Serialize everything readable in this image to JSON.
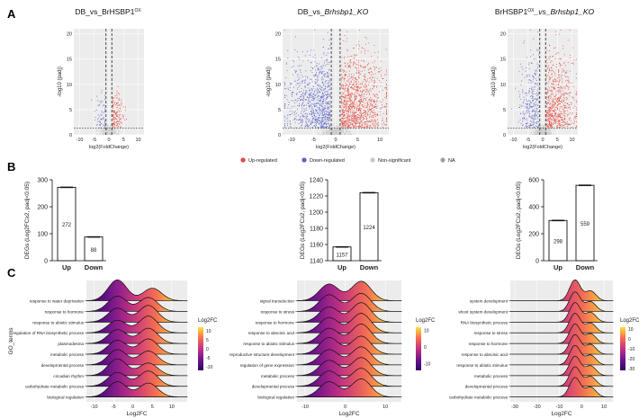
{
  "panel_labels": {
    "a": "A",
    "b": "B",
    "c": "C"
  },
  "chart_data": [
    {
      "type": "scatter",
      "id": "volcano-1",
      "title_main": "DB_vs_BrHSBP1",
      "title_sup": "OX",
      "title_tail": "",
      "xlabel": "log2(FoldChange)",
      "ylabel": "-log10 (padj)",
      "xlim": [
        -12,
        12
      ],
      "ylim": [
        0,
        21
      ],
      "xticks": [
        -10,
        -5,
        0,
        5,
        10
      ],
      "yticks": [
        0,
        5,
        10,
        15,
        20
      ],
      "fc_cutoffs": [
        -1,
        1
      ],
      "padj_line": 1.3,
      "points": {
        "down": 60,
        "up": 140,
        "ns": 280
      },
      "spread": {
        "down_x": 3.5,
        "up_x": 3.5,
        "y_max": 10
      }
    },
    {
      "type": "scatter",
      "id": "volcano-2",
      "title_main": "DB_vs_",
      "title_sup": "",
      "title_tail": "Brhsbp1_KO",
      "xlabel": "log2(FoldChange)",
      "ylabel": "-log10 (padj)",
      "xlim": [
        -12,
        12
      ],
      "ylim": [
        0,
        21
      ],
      "xticks": [
        -10,
        -5,
        0,
        5,
        10
      ],
      "yticks": [
        0,
        5,
        10,
        15,
        20
      ],
      "fc_cutoffs": [
        -1,
        1
      ],
      "padj_line": 1.3,
      "points": {
        "down": 900,
        "up": 1100,
        "ns": 500
      },
      "spread": {
        "down_x": 9,
        "up_x": 9,
        "y_max": 20
      }
    },
    {
      "type": "scatter",
      "id": "volcano-3",
      "title_main": "BrHSBP1",
      "title_sup": "OX",
      "title_tail": "_vs_Brhsbp1_KO",
      "xlabel": "log2(FoldChange)",
      "ylabel": "-log10 (padj)",
      "xlim": [
        -12,
        12
      ],
      "ylim": [
        0,
        21
      ],
      "xticks": [
        -10,
        -5,
        0,
        5,
        10
      ],
      "yticks": [
        0,
        5,
        10,
        15,
        20
      ],
      "fc_cutoffs": [
        -1,
        1
      ],
      "padj_line": 1.3,
      "points": {
        "down": 300,
        "up": 650,
        "ns": 450
      },
      "spread": {
        "down_x": 6,
        "up_x": 9,
        "y_max": 20
      }
    },
    {
      "type": "legend",
      "id": "volcano-legend",
      "items": [
        {
          "label": "Up-regulated",
          "color": "#e8463c"
        },
        {
          "label": "Down-regulated",
          "color": "#5a63c8"
        },
        {
          "label": "Non-significant",
          "color": "#c8c8c8"
        },
        {
          "label": "NA",
          "color": "#a0a0a0"
        }
      ]
    },
    {
      "type": "bar",
      "id": "bar-1",
      "categories": [
        "Up",
        "Down"
      ],
      "values": [
        272,
        88
      ],
      "ylabel": "DEGs (Log2FC≥2, padj<0.05)",
      "ylim": [
        0,
        300
      ],
      "yticks": [
        0,
        100,
        200,
        300
      ]
    },
    {
      "type": "bar",
      "id": "bar-2",
      "categories": [
        "Up",
        "Down"
      ],
      "values": [
        1157,
        1224
      ],
      "ylabel": "DEGs (Log2FC≥2, padj<0.05)",
      "ylim": [
        1140,
        1240
      ],
      "yticks": [
        1140,
        1160,
        1180,
        1200,
        1220,
        1240
      ]
    },
    {
      "type": "bar",
      "id": "bar-3",
      "categories": [
        "Up",
        "Down"
      ],
      "values": [
        298,
        559
      ],
      "ylabel": "DEGs (Log2FC≥2, padj<0.05)",
      "ylim": [
        0,
        600
      ],
      "yticks": [
        0,
        200,
        400,
        600
      ]
    },
    {
      "type": "ridgeline",
      "id": "ridge-1",
      "ylabel": "GO_terms",
      "xlabel": "Log2FC",
      "xlim": [
        -12,
        14
      ],
      "xticks": [
        -10,
        -5,
        0,
        5,
        10
      ],
      "legend_title": "Log2FC",
      "legend_ticks": [
        10,
        5,
        0,
        -5,
        -10
      ],
      "color_range": [
        -12,
        12
      ],
      "terms": [
        {
          "label": "response to water deprivation",
          "modes": [
            [
              -4,
              0.75
            ],
            [
              5,
              0.45
            ]
          ]
        },
        {
          "label": "response to hormone",
          "modes": [
            [
              -4,
              0.55
            ],
            [
              4,
              0.5
            ]
          ]
        },
        {
          "label": "response to abiotic stimulus",
          "modes": [
            [
              -4,
              0.5
            ],
            [
              4,
              0.6
            ]
          ]
        },
        {
          "label": "regulation of RNA biosynthetic process",
          "modes": [
            [
              -4,
              0.45
            ],
            [
              4,
              0.6
            ]
          ]
        },
        {
          "label": "plasmodesma",
          "modes": [
            [
              -4,
              0.5
            ],
            [
              4,
              0.55
            ]
          ]
        },
        {
          "label": "metabolic process",
          "modes": [
            [
              -4,
              0.5
            ],
            [
              4,
              0.55
            ]
          ]
        },
        {
          "label": "developmental process",
          "modes": [
            [
              -4,
              0.55
            ],
            [
              4,
              0.5
            ]
          ]
        },
        {
          "label": "circadian rhythm",
          "modes": [
            [
              -4,
              0.6
            ],
            [
              4,
              0.45
            ]
          ]
        },
        {
          "label": "carbohydrate metabolic process",
          "modes": [
            [
              -4,
              0.5
            ],
            [
              4,
              0.55
            ]
          ]
        },
        {
          "label": "biological regulation",
          "modes": [
            [
              -4,
              0.55
            ],
            [
              4,
              0.5
            ]
          ]
        }
      ]
    },
    {
      "type": "ridgeline",
      "id": "ridge-2",
      "ylabel": "",
      "xlabel": "Log2FC",
      "xlim": [
        -12,
        14
      ],
      "xticks": [
        -10,
        0,
        10
      ],
      "legend_title": "Log2FC",
      "legend_ticks": [
        10,
        0,
        -10
      ],
      "color_range": [
        -14,
        12
      ],
      "terms": [
        {
          "label": "signal transduction",
          "modes": [
            [
              -4,
              0.6
            ],
            [
              4,
              0.7
            ]
          ]
        },
        {
          "label": "response to stress",
          "modes": [
            [
              -4,
              0.6
            ],
            [
              4,
              0.65
            ]
          ]
        },
        {
          "label": "response to hormone",
          "modes": [
            [
              -4,
              0.55
            ],
            [
              4,
              0.7
            ]
          ]
        },
        {
          "label": "response to abscisic acid",
          "modes": [
            [
              -4,
              0.55
            ],
            [
              4,
              0.7
            ]
          ]
        },
        {
          "label": "response to abiotic stimulus",
          "modes": [
            [
              -4,
              0.55
            ],
            [
              4,
              0.7
            ]
          ]
        },
        {
          "label": "reproductive structure development",
          "modes": [
            [
              -4,
              0.6
            ],
            [
              4,
              0.65
            ]
          ]
        },
        {
          "label": "regulation of gene expression",
          "modes": [
            [
              -4,
              0.55
            ],
            [
              4,
              0.65
            ]
          ]
        },
        {
          "label": "metabolic process",
          "modes": [
            [
              -4,
              0.55
            ],
            [
              4,
              0.65
            ]
          ]
        },
        {
          "label": "developmental process",
          "modes": [
            [
              -4,
              0.55
            ],
            [
              4,
              0.65
            ]
          ]
        },
        {
          "label": "biological regulation",
          "modes": [
            [
              -4,
              0.55
            ],
            [
              4,
              0.65
            ]
          ]
        }
      ]
    },
    {
      "type": "ridgeline",
      "id": "ridge-3",
      "ylabel": "",
      "xlabel": "Log2FC",
      "xlim": [
        -32,
        14
      ],
      "xticks": [
        -30,
        -20,
        -10,
        0,
        10
      ],
      "legend_title": "Log2FC",
      "legend_ticks": [
        10,
        0,
        -10,
        -20,
        -30
      ],
      "color_range": [
        -32,
        12
      ],
      "terms": [
        {
          "label": "system development",
          "modes": [
            [
              -3,
              0.75
            ],
            [
              4,
              0.35
            ]
          ]
        },
        {
          "label": "shoot system development",
          "modes": [
            [
              -3,
              0.7
            ],
            [
              4,
              0.35
            ]
          ]
        },
        {
          "label": "RNA biosynthetic process",
          "modes": [
            [
              -3,
              0.7
            ],
            [
              4,
              0.35
            ]
          ]
        },
        {
          "label": "response to stress",
          "modes": [
            [
              -3,
              0.7
            ],
            [
              4,
              0.35
            ]
          ]
        },
        {
          "label": "response to hormone",
          "modes": [
            [
              -3,
              0.7
            ],
            [
              4,
              0.35
            ]
          ]
        },
        {
          "label": "response to abscisic acid",
          "modes": [
            [
              -3,
              0.7
            ],
            [
              4,
              0.35
            ]
          ]
        },
        {
          "label": "response to abiotic stimulus",
          "modes": [
            [
              -3,
              0.7
            ],
            [
              4,
              0.35
            ]
          ]
        },
        {
          "label": "metabolic process",
          "modes": [
            [
              -3,
              0.7
            ],
            [
              4,
              0.35
            ]
          ]
        },
        {
          "label": "developmental process",
          "modes": [
            [
              -3,
              0.7
            ],
            [
              4,
              0.35
            ]
          ]
        },
        {
          "label": "carbohydrate metabolic process",
          "modes": [
            [
              -3,
              0.7
            ],
            [
              4,
              0.35
            ]
          ]
        }
      ]
    }
  ]
}
